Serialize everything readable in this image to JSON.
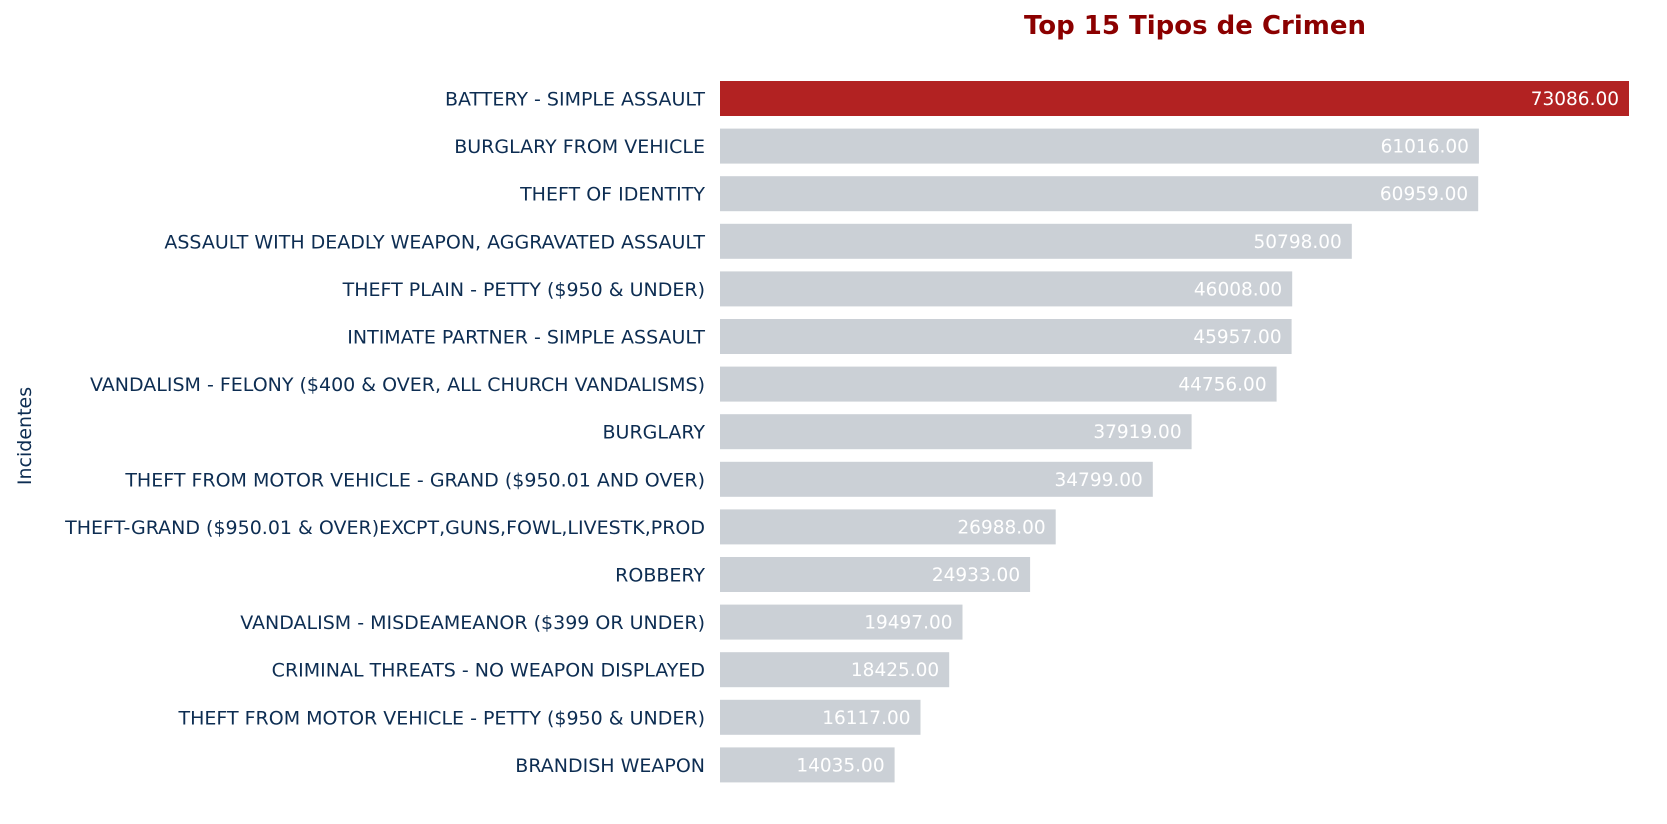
{
  "chart_data": {
    "type": "bar",
    "orientation": "horizontal",
    "title": "Top 15 Tipos de Crimen",
    "ylabel": "Incidentes",
    "xlabel": "",
    "categories": [
      "BATTERY - SIMPLE ASSAULT",
      "BURGLARY FROM VEHICLE",
      "THEFT OF IDENTITY",
      "ASSAULT WITH DEADLY WEAPON, AGGRAVATED ASSAULT",
      "THEFT PLAIN - PETTY ($950 & UNDER)",
      "INTIMATE PARTNER - SIMPLE ASSAULT",
      "VANDALISM - FELONY ($400 & OVER, ALL CHURCH VANDALISMS)",
      "BURGLARY",
      "THEFT FROM MOTOR VEHICLE - GRAND ($950.01 AND OVER)",
      "THEFT-GRAND ($950.01 & OVER)EXCPT,GUNS,FOWL,LIVESTK,PROD",
      "ROBBERY",
      "VANDALISM - MISDEAMEANOR ($399 OR UNDER)",
      "CRIMINAL THREATS - NO WEAPON DISPLAYED",
      "THEFT FROM MOTOR VEHICLE - PETTY ($950 & UNDER)",
      "BRANDISH WEAPON"
    ],
    "values": [
      73086,
      61016,
      60959,
      50798,
      46008,
      45957,
      44756,
      37919,
      34799,
      26988,
      24933,
      19497,
      18425,
      16117,
      14035
    ],
    "value_labels": [
      "73086.00",
      "61016.00",
      "60959.00",
      "50798.00",
      "46008.00",
      "45957.00",
      "44756.00",
      "37919.00",
      "34799.00",
      "26988.00",
      "24933.00",
      "19497.00",
      "18425.00",
      "16117.00",
      "14035.00"
    ],
    "xlim": [
      0,
      73086
    ],
    "grid": false,
    "highlight_index": 0,
    "colors": {
      "highlight": "#b22222",
      "bar": "#cbd0d6",
      "title": "#8b0000",
      "label": "#0d2d52",
      "value_text": "#ffffff"
    }
  }
}
